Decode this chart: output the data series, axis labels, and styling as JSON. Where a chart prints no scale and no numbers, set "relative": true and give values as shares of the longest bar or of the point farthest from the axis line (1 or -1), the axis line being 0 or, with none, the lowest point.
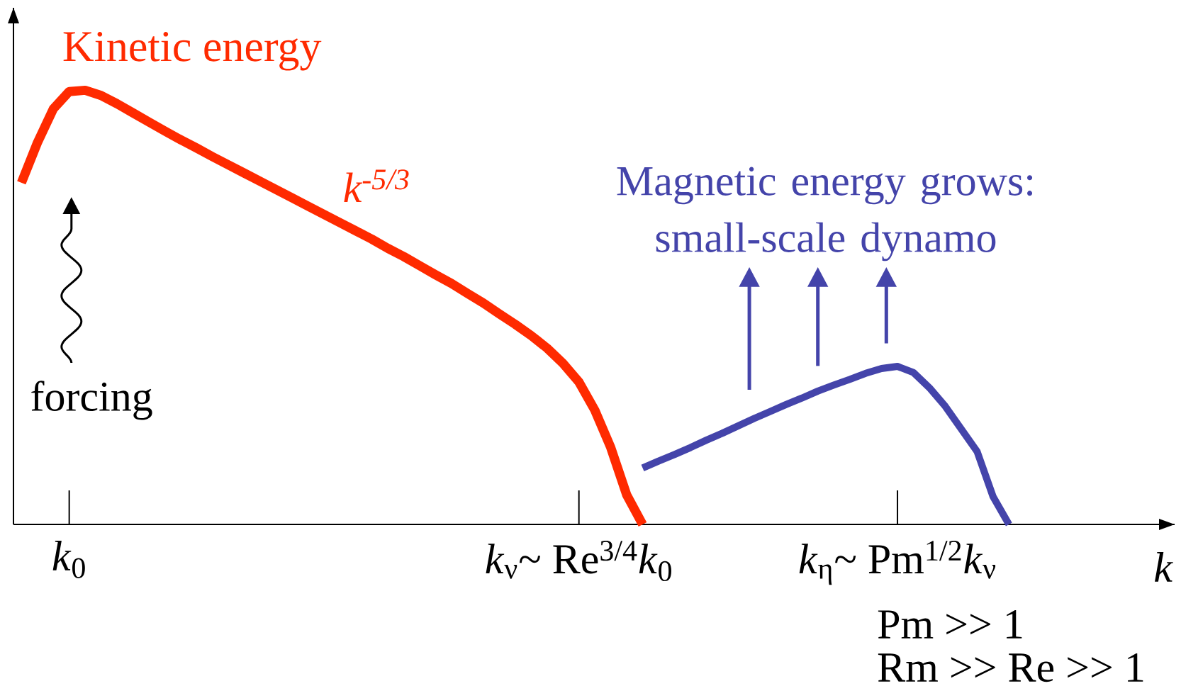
{
  "chart_data": {
    "type": "line",
    "relative": true,
    "xlabel": "k",
    "categories": [
      null,
      null,
      null,
      "*k*$_{0}$",
      null,
      null,
      null,
      null,
      null,
      null,
      null,
      null,
      null,
      null,
      null,
      null,
      null,
      null,
      null,
      null,
      null,
      null,
      null,
      null,
      null,
      null,
      null,
      null,
      null,
      null,
      null,
      null,
      null,
      null,
      null,
      "*k*$_{ν}$~ Re$^{3/4}$*k*$_{0}$",
      null,
      null,
      null,
      null,
      null,
      null,
      null,
      null,
      null,
      null,
      null,
      null,
      null,
      null,
      null,
      null,
      null,
      null,
      null,
      "*k*$_{η}$~ Pm$^{1/2}$*k*$_{ν}$",
      null,
      null,
      null,
      null,
      null,
      null,
      null,
      null,
      null,
      null,
      null,
      null,
      null,
      null,
      null,
      null,
      null
    ],
    "series": [
      {
        "name": "Kinetic energy",
        "color": "#ff2a00",
        "values": [
          0.787,
          0.879,
          0.957,
          0.997,
          1.0,
          0.988,
          0.969,
          0.948,
          0.927,
          0.906,
          0.886,
          0.867,
          0.847,
          0.828,
          0.809,
          0.79,
          0.771,
          0.752,
          0.733,
          0.714,
          0.695,
          0.676,
          0.657,
          0.636,
          0.617,
          0.596,
          0.575,
          0.555,
          0.532,
          0.51,
          0.485,
          0.461,
          0.435,
          0.406,
          0.371,
          0.328,
          0.263,
          0.177,
          0.068,
          0,
          null,
          null,
          null,
          null,
          null,
          null,
          null,
          null,
          null,
          null,
          null,
          null,
          null,
          null,
          null,
          null,
          null,
          null,
          null,
          null,
          null,
          null,
          null,
          null,
          null,
          null,
          null,
          null,
          null,
          null,
          null,
          null,
          null
        ]
      },
      {
        "name": "Magnetic energy grows: small-scale dynamo",
        "color": "#4444aa",
        "values": [
          null,
          null,
          null,
          null,
          null,
          null,
          null,
          null,
          null,
          null,
          null,
          null,
          null,
          null,
          null,
          null,
          null,
          null,
          null,
          null,
          null,
          null,
          null,
          null,
          null,
          null,
          null,
          null,
          null,
          null,
          null,
          null,
          null,
          null,
          null,
          null,
          null,
          null,
          null,
          0.13,
          0.146,
          0.161,
          0.177,
          0.194,
          0.21,
          0.227,
          0.244,
          0.26,
          0.276,
          0.291,
          0.307,
          0.321,
          0.334,
          0.348,
          0.359,
          0.364,
          0.35,
          0.315,
          0.272,
          0.22,
          0.168,
          0.064,
          0,
          null,
          null,
          null,
          null,
          null,
          null,
          null,
          null,
          null,
          null
        ]
      }
    ],
    "annotations": [
      "k$^{-5/3}$",
      "forcing",
      "Pm >> 1",
      "Rm >> Re >> 1"
    ]
  }
}
